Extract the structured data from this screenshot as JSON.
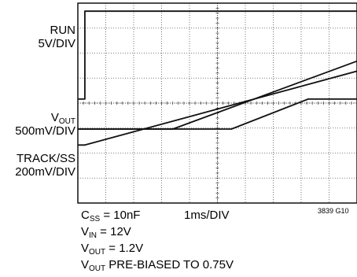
{
  "labels": {
    "run_name": "RUN",
    "run_scale": "5V/DIV",
    "vout_name": "V",
    "vout_sub": "OUT",
    "vout_scale": "500mV/DIV",
    "track_name": "TRACK/SS",
    "track_scale": "200mV/DIV"
  },
  "conditions": {
    "css_main": "C",
    "css_sub": "SS",
    "css_value": " = 10nF",
    "timebase": "1ms/DIV",
    "vin_main": "V",
    "vin_sub": "IN",
    "vin_value": " = 12V",
    "vout_main": "V",
    "vout_sub": "OUT",
    "vout_value": " = 1.2V",
    "prebias_main": "V",
    "prebias_sub": "OUT",
    "prebias_value": " PRE-BIASED TO 0.75V"
  },
  "figure_id": "3839 G10",
  "chart_data": {
    "type": "line",
    "x_unit": "ms",
    "xlim": [
      0,
      10
    ],
    "divisions": {
      "x": 10,
      "y": 8
    },
    "grid": true,
    "series": [
      {
        "x": [
          0,
          0.25,
          0.25,
          10
        ],
        "y": [
          0.52,
          0.52,
          0.96,
          0.96
        ]
      },
      {
        "x": [
          0,
          3.4,
          10
        ],
        "y": [
          0.37,
          0.37,
          0.71
        ]
      },
      {
        "x": [
          0,
          0.25,
          10
        ],
        "y": [
          0.29,
          0.29,
          0.66
        ]
      },
      {
        "x": [
          0,
          5.5,
          8.25,
          10
        ],
        "y": [
          0.37,
          0.37,
          0.52,
          0.52
        ]
      }
    ]
  }
}
